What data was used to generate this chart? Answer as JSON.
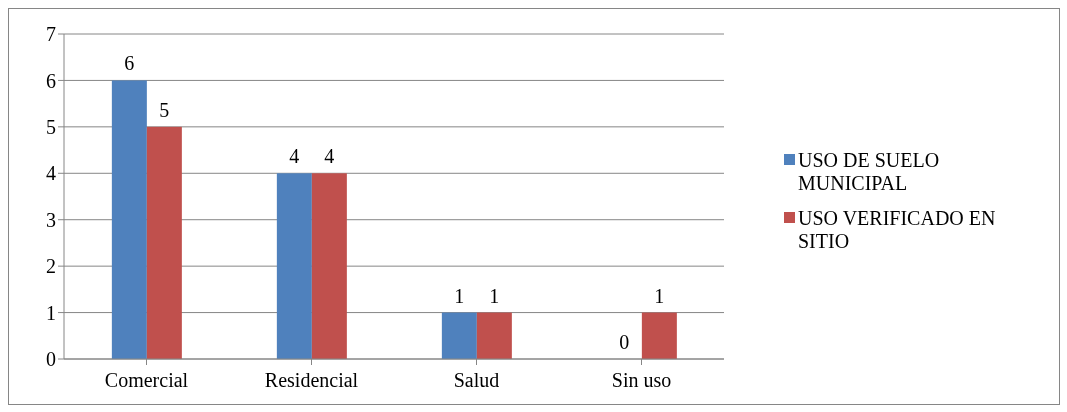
{
  "chart_data": {
    "type": "bar",
    "categories": [
      "Comercial",
      "Residencial",
      "Salud",
      "Sin uso"
    ],
    "series": [
      {
        "name": "USO DE SUELO MUNICIPAL",
        "color": "#4f81bd",
        "values": [
          6,
          4,
          1,
          0
        ]
      },
      {
        "name": "USO VERIFICADO EN SITIO",
        "color": "#c0504d",
        "values": [
          5,
          4,
          1,
          1
        ]
      }
    ],
    "ylim": [
      0,
      7
    ],
    "yticks": [
      0,
      1,
      2,
      3,
      4,
      5,
      6,
      7
    ],
    "grid": "y",
    "legend": "right",
    "data_labels": true
  }
}
